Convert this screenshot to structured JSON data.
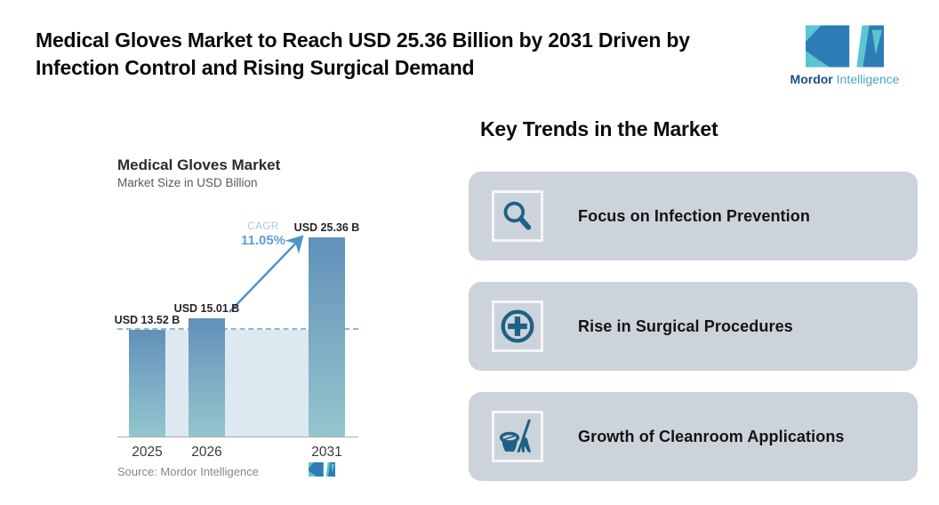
{
  "header": {
    "title_line1": "Medical Gloves Market to Reach USD 25.36 Billion by 2031 Driven by",
    "title_line2": "Infection Control and Rising Surgical Demand"
  },
  "brand": {
    "name_bold": "Mordor",
    "name_light": " Intelligence",
    "colors": {
      "logo_dark_blue": "#2e7cb5",
      "logo_teal": "#5bc5d2",
      "word_dark": "#17507c",
      "word_light": "#4ba3d4"
    }
  },
  "chart": {
    "title": "Medical Gloves Market",
    "subtitle": "Market Size in USD Billion",
    "cagr_label": "CAGR",
    "cagr_value": "11.05%",
    "source": "Source: Mordor Intelligence"
  },
  "chart_data": {
    "type": "bar",
    "title": "Medical Gloves Market",
    "subtitle": "Market Size in USD Billion",
    "categories": [
      "2025",
      "2026",
      "2031"
    ],
    "values": [
      13.52,
      15.01,
      25.36
    ],
    "bar_labels": [
      "USD 13.52 B",
      "USD 15.01 B",
      "USD 25.36 B"
    ],
    "ylabel": "Market Size in USD Billion",
    "ylim": [
      0,
      28.5
    ],
    "grid": false,
    "legend": "none",
    "cagr_pct": 11.05,
    "annotations": [
      "CAGR 11.05%",
      "dashed baseline at 2025 level of 13.52"
    ],
    "baseline_value": 13.52,
    "bar_gradient_top": "#6190b9",
    "bar_gradient_bottom": "#92c6ce",
    "baseline_region_color": "#dde9f1",
    "dashed_line_color": "#8ab8da",
    "arrow_color": "#4e93c9"
  },
  "trends": {
    "heading": "Key Trends in the Market",
    "items": [
      {
        "label": "Focus on Infection Prevention",
        "icon": "magnifier-icon"
      },
      {
        "label": "Rise in Surgical Procedures",
        "icon": "medical-cross-icon"
      },
      {
        "label": "Growth of Cleanroom Applications",
        "icon": "cleaning-icon"
      }
    ],
    "card_color": "#cdd3da",
    "icon_color": "#1d6285"
  }
}
